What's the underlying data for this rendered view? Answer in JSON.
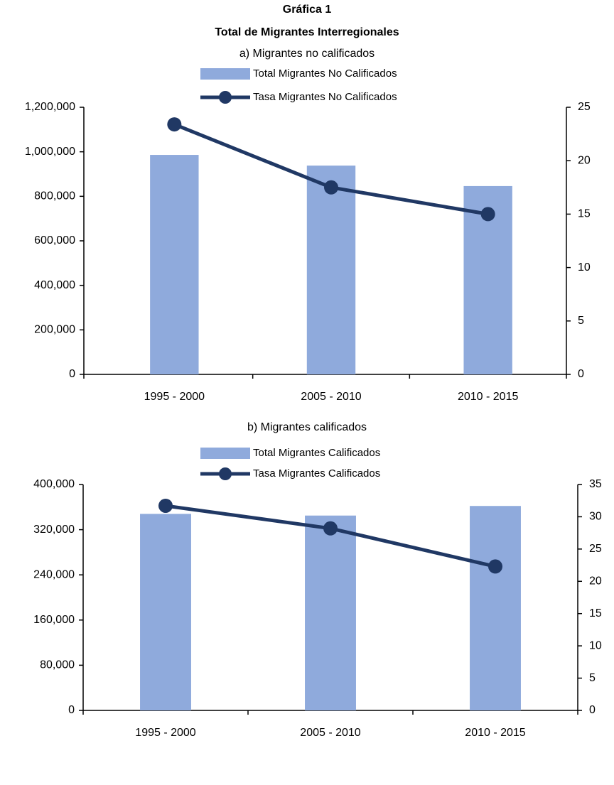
{
  "header": {
    "title": "Gráfica 1",
    "subtitle": "Total de Migrantes Interregionales"
  },
  "chart_data": [
    {
      "type": "combo",
      "title": "a) Migrantes no calificados",
      "categories": [
        "1995 - 2000",
        "2005 - 2010",
        "2010 - 2015"
      ],
      "series": [
        {
          "name": "Total Migrantes No Calificados",
          "type": "bar",
          "color": "#8faadc",
          "values": [
            986000,
            938000,
            846000
          ]
        },
        {
          "name": "Tasa Migrantes No Calificados",
          "type": "line",
          "axis": "y2",
          "color": "#203864",
          "values": [
            23.4,
            17.5,
            15.0
          ]
        }
      ],
      "ylim": [
        0,
        1200000
      ],
      "yticks": [
        0,
        {
          "value": 200000,
          "label": "200,000"
        },
        {
          "value": 400000,
          "label": "400,000"
        },
        {
          "value": 600000,
          "label": "600,000"
        },
        {
          "value": 800000,
          "label": "800,000"
        },
        {
          "value": 1000000,
          "label": "1,000,000"
        },
        {
          "value": 1200000,
          "label": "1,200,000"
        }
      ],
      "y2lim": [
        0,
        25
      ],
      "y2ticks": [
        0,
        5,
        10,
        15,
        20,
        25
      ],
      "grid": false
    },
    {
      "type": "combo",
      "title": "b) Migrantes calificados",
      "categories": [
        "1995 - 2000",
        "2005 - 2010",
        "2010 - 2015"
      ],
      "series": [
        {
          "name": "Total Migrantes Calificados",
          "type": "bar",
          "color": "#8faadc",
          "values": [
            348000,
            345000,
            362000
          ]
        },
        {
          "name": "Tasa Migrantes Calificados",
          "type": "line",
          "axis": "y2",
          "color": "#203864",
          "values": [
            31.7,
            28.2,
            22.3
          ]
        }
      ],
      "ylim": [
        0,
        400000
      ],
      "yticks": [
        0,
        {
          "value": 80000,
          "label": "80,000"
        },
        {
          "value": 160000,
          "label": "160,000"
        },
        {
          "value": 240000,
          "label": "240,000"
        },
        {
          "value": 320000,
          "label": "320,000"
        },
        {
          "value": 400000,
          "label": "400,000"
        }
      ],
      "y2lim": [
        0,
        35
      ],
      "y2ticks": [
        0,
        5,
        10,
        15,
        20,
        25,
        30,
        35
      ],
      "grid": false
    }
  ]
}
